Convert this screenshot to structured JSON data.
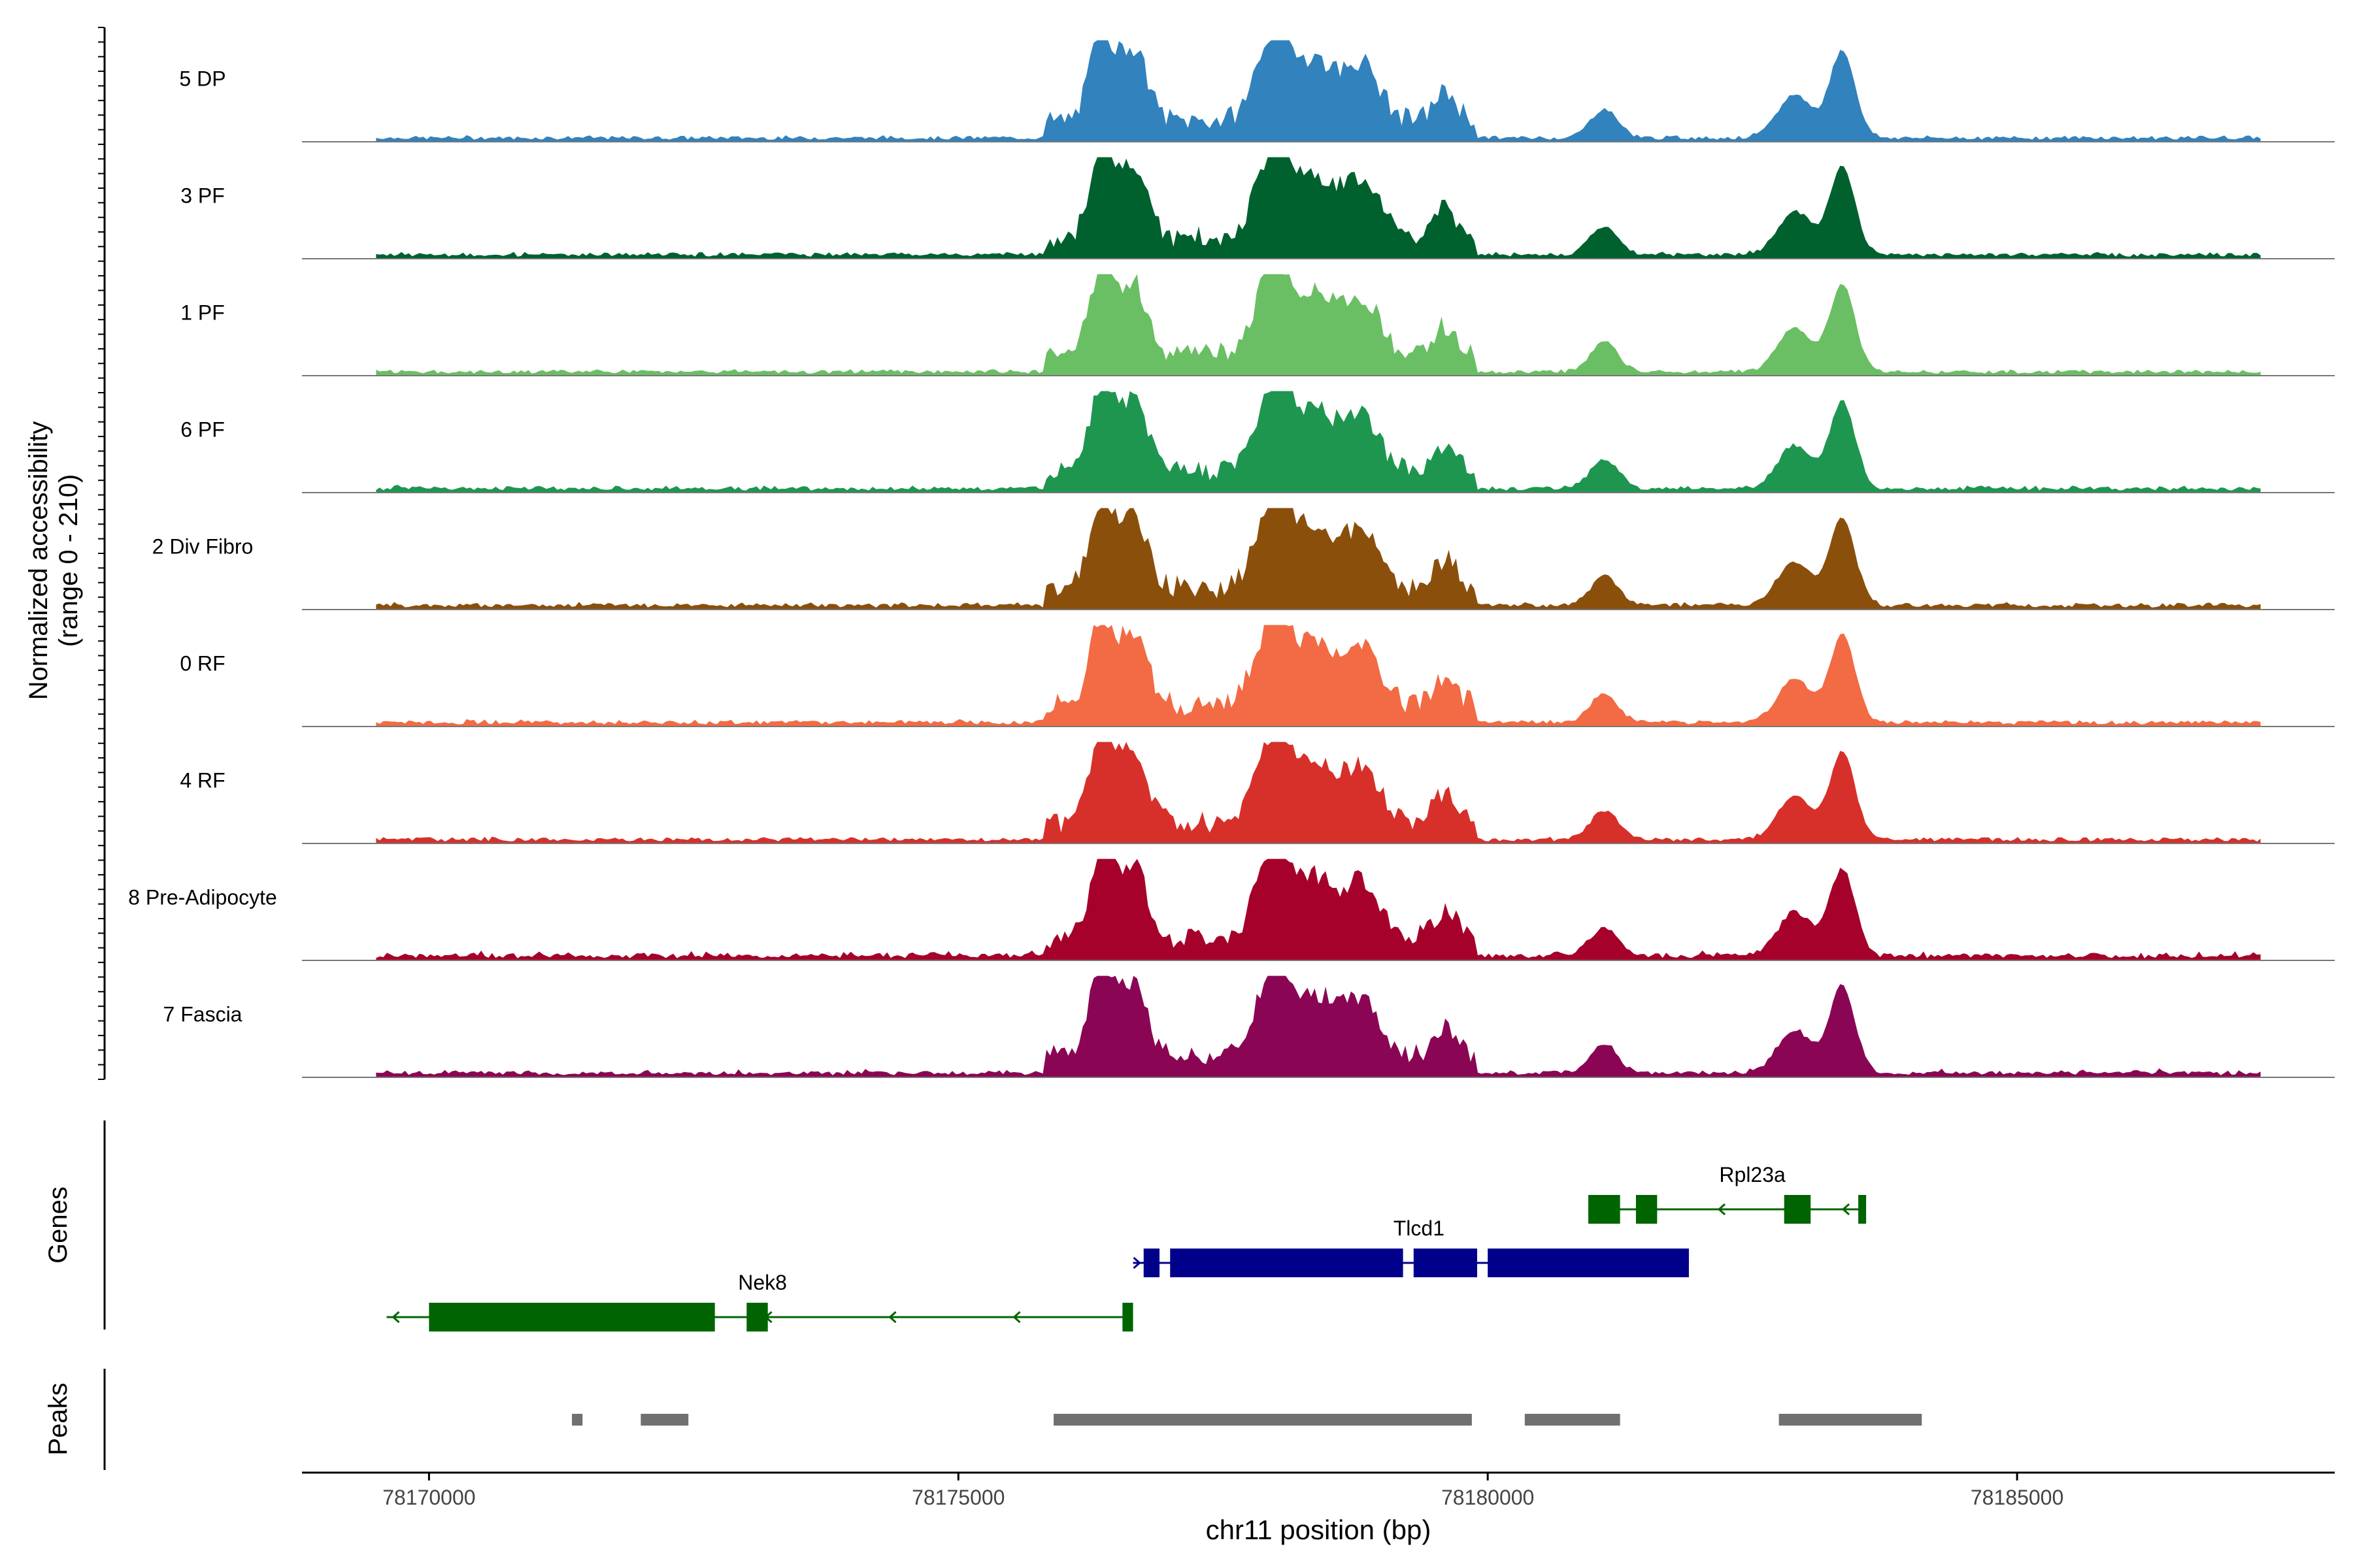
{
  "chart_data": {
    "type": "area",
    "title": "",
    "xlabel": "chr11 position (bp)",
    "ylabel": "Normalized accessibility",
    "ylabel_sub": "(range 0 - 210)",
    "xlim": [
      78168800,
      78188000
    ],
    "ylim": [
      0,
      210
    ],
    "x_ticks": [
      78170000,
      78175000,
      78180000,
      78185000
    ],
    "x_tick_labels": [
      "78170000",
      "78175000",
      "78180000",
      "78185000"
    ],
    "tracks": [
      {
        "name": "5 DP",
        "color": "#3182bd",
        "noise": 0.1
      },
      {
        "name": "3 PF",
        "color": "#00612f",
        "noise": 0.15
      },
      {
        "name": "1 PF",
        "color": "#6abf64",
        "noise": 0.1
      },
      {
        "name": "6 PF",
        "color": "#1e9650",
        "noise": 0.2
      },
      {
        "name": "2 Div Fibro",
        "color": "#8b4f0c",
        "noise": 0.25
      },
      {
        "name": "0 RF",
        "color": "#f26b44",
        "noise": 0.2
      },
      {
        "name": "4 RF",
        "color": "#d7302a",
        "noise": 0.15
      },
      {
        "name": "8 Pre-Adipocyte",
        "color": "#a5012b",
        "noise": 0.45
      },
      {
        "name": "7 Fascia",
        "color": "#8a0654",
        "noise": 0.3
      }
    ],
    "peaks": [
      {
        "center": 78176350,
        "height": 0.9,
        "width": 110
      },
      {
        "center": 78176650,
        "height": 0.75,
        "width": 130
      },
      {
        "center": 78178000,
        "height": 1.0,
        "width": 170
      },
      {
        "center": 78178400,
        "height": 0.55,
        "width": 150
      },
      {
        "center": 78178800,
        "height": 0.6,
        "width": 170
      },
      {
        "center": 78179600,
        "height": 0.3,
        "width": 110
      },
      {
        "center": 78181100,
        "height": 0.3,
        "width": 130
      },
      {
        "center": 78182900,
        "height": 0.45,
        "width": 160
      },
      {
        "center": 78183350,
        "height": 0.9,
        "width": 120
      }
    ],
    "genes_label": "Genes",
    "peaks_label": "Peaks",
    "genes": [
      {
        "name": "Nek8",
        "strand": "-",
        "color": "#006400",
        "start": 78169600,
        "end": 78176650,
        "label_x": 78173150,
        "row": 2,
        "exons": [
          [
            78170000,
            78172700
          ],
          [
            78173000,
            78173200
          ],
          [
            78176550,
            78176650
          ]
        ]
      },
      {
        "name": "Tlcd1",
        "strand": "+",
        "color": "#00008b",
        "start": 78176650,
        "end": 78181900,
        "label_x": 78179350,
        "row": 1,
        "exons": [
          [
            78176750,
            78176900
          ],
          [
            78177000,
            78179200
          ],
          [
            78179300,
            78179900
          ],
          [
            78180000,
            78181900
          ]
        ]
      },
      {
        "name": "Rpl23a",
        "strand": "-",
        "color": "#006400",
        "start": 78180950,
        "end": 78183550,
        "label_x": 78182500,
        "row": 0,
        "exons": [
          [
            78180950,
            78181250
          ],
          [
            78181400,
            78181600
          ],
          [
            78182800,
            78183050
          ],
          [
            78183500,
            78183550
          ]
        ]
      }
    ],
    "peak_regions": [
      [
        78171350,
        78171450
      ],
      [
        78172000,
        78172450
      ],
      [
        78175900,
        78179850
      ],
      [
        78180350,
        78181250
      ],
      [
        78182750,
        78184100
      ]
    ]
  }
}
